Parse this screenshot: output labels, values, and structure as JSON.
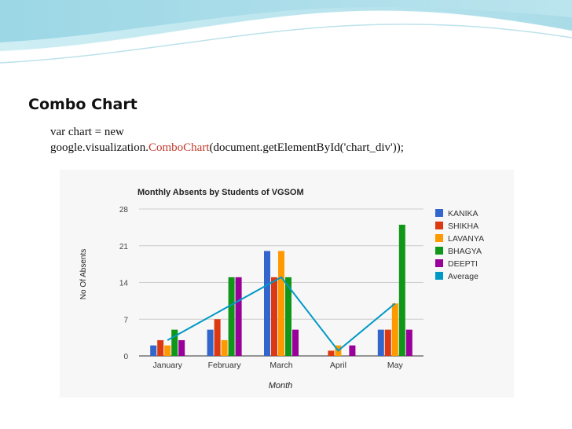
{
  "slide": {
    "title": "Combo Chart",
    "code_line_1": "var chart = new",
    "code_line_2_prefix": "google.visualization.",
    "code_line_2_highlight": "ComboChart",
    "code_line_2_suffix": "(document.getElementById('chart_div'));",
    "highlight_color": "#c0392b"
  },
  "chart_data": {
    "type": "bar",
    "title": "Monthly Absents by Students of VGSOM",
    "xlabel": "Month",
    "ylabel": "No Of Absents",
    "categories": [
      "January",
      "February",
      "March",
      "April",
      "May"
    ],
    "ylim": [
      0,
      28
    ],
    "yticks": [
      0,
      7,
      14,
      21,
      28
    ],
    "grid": true,
    "legend_position": "right",
    "series": [
      {
        "name": "KANIKA",
        "type": "bar",
        "color": "#3366cc",
        "values": [
          2,
          5,
          20,
          0,
          5
        ]
      },
      {
        "name": "SHIKHA",
        "type": "bar",
        "color": "#dc3912",
        "values": [
          3,
          7,
          15,
          1,
          5
        ]
      },
      {
        "name": "LAVANYA",
        "type": "bar",
        "color": "#ff9900",
        "values": [
          2,
          3,
          20,
          2,
          10
        ]
      },
      {
        "name": "BHAGYA",
        "type": "bar",
        "color": "#109618",
        "values": [
          5,
          15,
          15,
          0,
          25
        ]
      },
      {
        "name": "DEEPTI",
        "type": "bar",
        "color": "#990099",
        "values": [
          3,
          15,
          5,
          2,
          5
        ]
      },
      {
        "name": "Average",
        "type": "line",
        "color": "#0099c6",
        "values": [
          3,
          9,
          15,
          1,
          10
        ]
      }
    ]
  }
}
